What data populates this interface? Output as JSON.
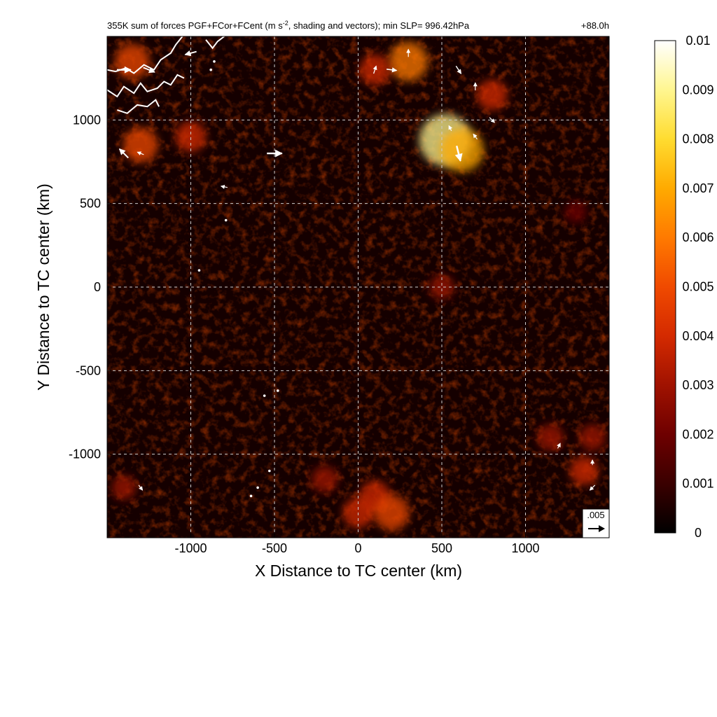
{
  "chart_data": {
    "type": "heatmap",
    "title": {
      "main": "355K sum of forces PGF+FCor+FCent (m s",
      "superscript": "-2",
      "rest": ", shading and vectors); min SLP= 996.42hPa",
      "forecast_time": "+88.0h"
    },
    "xlabel": "X Distance to TC center (km)",
    "ylabel": "Y Distance to TC center (km)",
    "xlim": [
      -1500,
      1500
    ],
    "ylim": [
      -1500,
      1500
    ],
    "x_ticks": [
      -1000,
      -500,
      0,
      500,
      1000
    ],
    "y_ticks": [
      -1000,
      -500,
      0,
      500,
      1000
    ],
    "x_tick_labels": [
      "-1000",
      "-500",
      "0",
      "500",
      "1000"
    ],
    "y_tick_labels": [
      "-1000",
      "-500",
      "0",
      "500",
      "1000"
    ],
    "grid": "dashed",
    "colorbar": {
      "min": 0,
      "max": 0.01,
      "ticks": [
        0,
        0.001,
        0.002,
        0.003,
        0.004,
        0.005,
        0.006,
        0.007,
        0.008,
        0.009,
        0.01
      ],
      "tick_labels": [
        "0",
        "0.001",
        "0.002",
        "0.003",
        "0.004",
        "0.005",
        "0.006",
        "0.007",
        "0.008",
        "0.009",
        "0.01"
      ],
      "colormap": [
        "#000000",
        "#3a0000",
        "#6e0000",
        "#a01200",
        "#d42a00",
        "#f04a00",
        "#ff7a00",
        "#ffaa00",
        "#ffdc30",
        "#fff690",
        "#ffffff"
      ]
    },
    "reference_vector": {
      "value": 0.005,
      "label": ".005"
    },
    "hotspots": [
      {
        "x": -1350,
        "y": 1350,
        "value": 0.005
      },
      {
        "x": -1300,
        "y": 850,
        "value": 0.005
      },
      {
        "x": -1000,
        "y": 900,
        "value": 0.004
      },
      {
        "x": 300,
        "y": 1350,
        "value": 0.006
      },
      {
        "x": 100,
        "y": 1300,
        "value": 0.004
      },
      {
        "x": 520,
        "y": 880,
        "value": 0.009
      },
      {
        "x": 620,
        "y": 820,
        "value": 0.007
      },
      {
        "x": 800,
        "y": 1150,
        "value": 0.004
      },
      {
        "x": 1300,
        "y": 450,
        "value": 0.002
      },
      {
        "x": 500,
        "y": 0,
        "value": 0.0025
      },
      {
        "x": 100,
        "y": -1250,
        "value": 0.004
      },
      {
        "x": 0,
        "y": -1350,
        "value": 0.004
      },
      {
        "x": 200,
        "y": -1350,
        "value": 0.005
      },
      {
        "x": -200,
        "y": -1150,
        "value": 0.003
      },
      {
        "x": 1150,
        "y": -900,
        "value": 0.003
      },
      {
        "x": 1350,
        "y": -1100,
        "value": 0.0035
      },
      {
        "x": 1400,
        "y": -900,
        "value": 0.003
      },
      {
        "x": -1400,
        "y": -1200,
        "value": 0.0025
      }
    ],
    "vectors": [
      {
        "x": -1000,
        "y": 1400,
        "u": -0.0045,
        "v": -0.0012
      },
      {
        "x": -1250,
        "y": 1300,
        "u": 0.0045,
        "v": -0.0018
      },
      {
        "x": -1400,
        "y": 1300,
        "u": 0.0055,
        "v": 0.0
      },
      {
        "x": -1400,
        "y": 800,
        "u": -0.0035,
        "v": 0.0035
      },
      {
        "x": -500,
        "y": 800,
        "u": 0.006,
        "v": 0.0
      },
      {
        "x": -1300,
        "y": 800,
        "u": -0.0025,
        "v": 0.001
      },
      {
        "x": -800,
        "y": 600,
        "u": -0.0025,
        "v": 0.0005
      },
      {
        "x": 600,
        "y": 800,
        "u": 0.0015,
        "v": -0.006
      },
      {
        "x": 550,
        "y": 950,
        "u": -0.001,
        "v": 0.002
      },
      {
        "x": 300,
        "y": 1400,
        "u": 0.0,
        "v": 0.003
      },
      {
        "x": 200,
        "y": 1300,
        "u": 0.004,
        "v": -0.0005
      },
      {
        "x": 100,
        "y": 1300,
        "u": 0.001,
        "v": 0.003
      },
      {
        "x": 600,
        "y": 1300,
        "u": 0.002,
        "v": -0.003
      },
      {
        "x": 700,
        "y": 1200,
        "u": 0.0,
        "v": 0.003
      },
      {
        "x": 800,
        "y": 1000,
        "u": 0.002,
        "v": -0.002
      },
      {
        "x": 700,
        "y": 900,
        "u": -0.0015,
        "v": 0.002
      },
      {
        "x": -1300,
        "y": -1200,
        "u": 0.0015,
        "v": -0.002
      },
      {
        "x": 1400,
        "y": -1200,
        "u": -0.002,
        "v": -0.002
      },
      {
        "x": 1200,
        "y": -950,
        "u": 0.001,
        "v": 0.002
      },
      {
        "x": 1400,
        "y": -1050,
        "u": 0.0,
        "v": 0.002
      }
    ],
    "coastline": {
      "color": "#ffffff",
      "points": [
        [
          -1500,
          1300
        ],
        [
          -1450,
          1290
        ],
        [
          -1390,
          1310
        ],
        [
          -1340,
          1280
        ],
        [
          -1280,
          1330
        ],
        [
          -1220,
          1300
        ],
        [
          -1180,
          1360
        ],
        [
          -1120,
          1400
        ],
        [
          -1090,
          1450
        ],
        [
          -1050,
          1500
        ]
      ],
      "islands": [
        [
          [
            -1500,
            1180
          ],
          [
            -1440,
            1140
          ],
          [
            -1400,
            1200
          ],
          [
            -1340,
            1160
          ],
          [
            -1300,
            1220
          ],
          [
            -1260,
            1170
          ],
          [
            -1200,
            1190
          ],
          [
            -1160,
            1230
          ],
          [
            -1120,
            1210
          ],
          [
            -1080,
            1270
          ],
          [
            -1040,
            1250
          ]
        ],
        [
          [
            -1440,
            1060
          ],
          [
            -1380,
            1040
          ],
          [
            -1320,
            1090
          ],
          [
            -1260,
            1080
          ],
          [
            -1210,
            1120
          ],
          [
            -1190,
            1080
          ]
        ],
        [
          [
            -910,
            1480
          ],
          [
            -870,
            1430
          ],
          [
            -840,
            1470
          ],
          [
            -800,
            1500
          ]
        ]
      ],
      "dots": [
        [
          -880,
          1300
        ],
        [
          -860,
          1350
        ],
        [
          -790,
          400
        ],
        [
          -950,
          100
        ],
        [
          -480,
          -620
        ],
        [
          -560,
          -650
        ],
        [
          -530,
          -1100
        ],
        [
          -600,
          -1200
        ],
        [
          -640,
          -1250
        ]
      ]
    }
  }
}
